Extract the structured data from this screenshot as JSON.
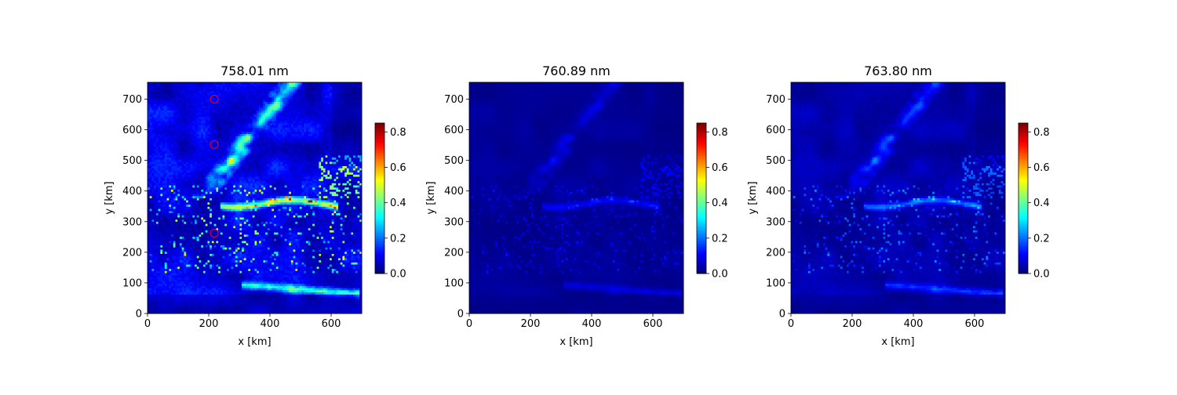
{
  "chart_data": [
    {
      "type": "heatmap",
      "title": "758.01 nm",
      "xlabel": "x [km]",
      "ylabel": "y [km]",
      "xlim": [
        0,
        700
      ],
      "ylim": [
        0,
        755
      ],
      "xticks": [
        0,
        200,
        400,
        600
      ],
      "yticks": [
        0,
        100,
        200,
        300,
        400,
        500,
        600,
        700
      ],
      "colorbar": {
        "min": 0.0,
        "max": 0.85,
        "ticks": [
          "0.0",
          "0.2",
          "0.4",
          "0.6",
          "0.8"
        ],
        "colormap": "jet"
      },
      "intensity": 1.0,
      "markers": [
        {
          "x": 218,
          "y": 700,
          "color": "#ff0000"
        },
        {
          "x": 218,
          "y": 552,
          "color": "#ff0000"
        },
        {
          "x": 218,
          "y": 262,
          "color": "#ff0000"
        }
      ]
    },
    {
      "type": "heatmap",
      "title": "760.89 nm",
      "xlabel": "x [km]",
      "ylabel": "y [km]",
      "xlim": [
        0,
        700
      ],
      "ylim": [
        0,
        755
      ],
      "xticks": [
        0,
        200,
        400,
        600
      ],
      "yticks": [
        0,
        100,
        200,
        300,
        400,
        500,
        600,
        700
      ],
      "colorbar": {
        "min": 0.0,
        "max": 0.85,
        "ticks": [
          "0.0",
          "0.2",
          "0.4",
          "0.6",
          "0.8"
        ],
        "colormap": "jet"
      },
      "intensity": 0.22,
      "markers": []
    },
    {
      "type": "heatmap",
      "title": "763.80 nm",
      "xlabel": "x [km]",
      "ylabel": "y [km]",
      "xlim": [
        0,
        700
      ],
      "ylim": [
        0,
        755
      ],
      "xticks": [
        0,
        200,
        400,
        600
      ],
      "yticks": [
        0,
        100,
        200,
        300,
        400,
        500,
        600,
        700
      ],
      "colorbar": {
        "min": 0.0,
        "max": 0.85,
        "ticks": [
          "0.0",
          "0.2",
          "0.4",
          "0.6",
          "0.8"
        ],
        "colormap": "jet"
      },
      "intensity": 0.42,
      "markers": []
    }
  ]
}
